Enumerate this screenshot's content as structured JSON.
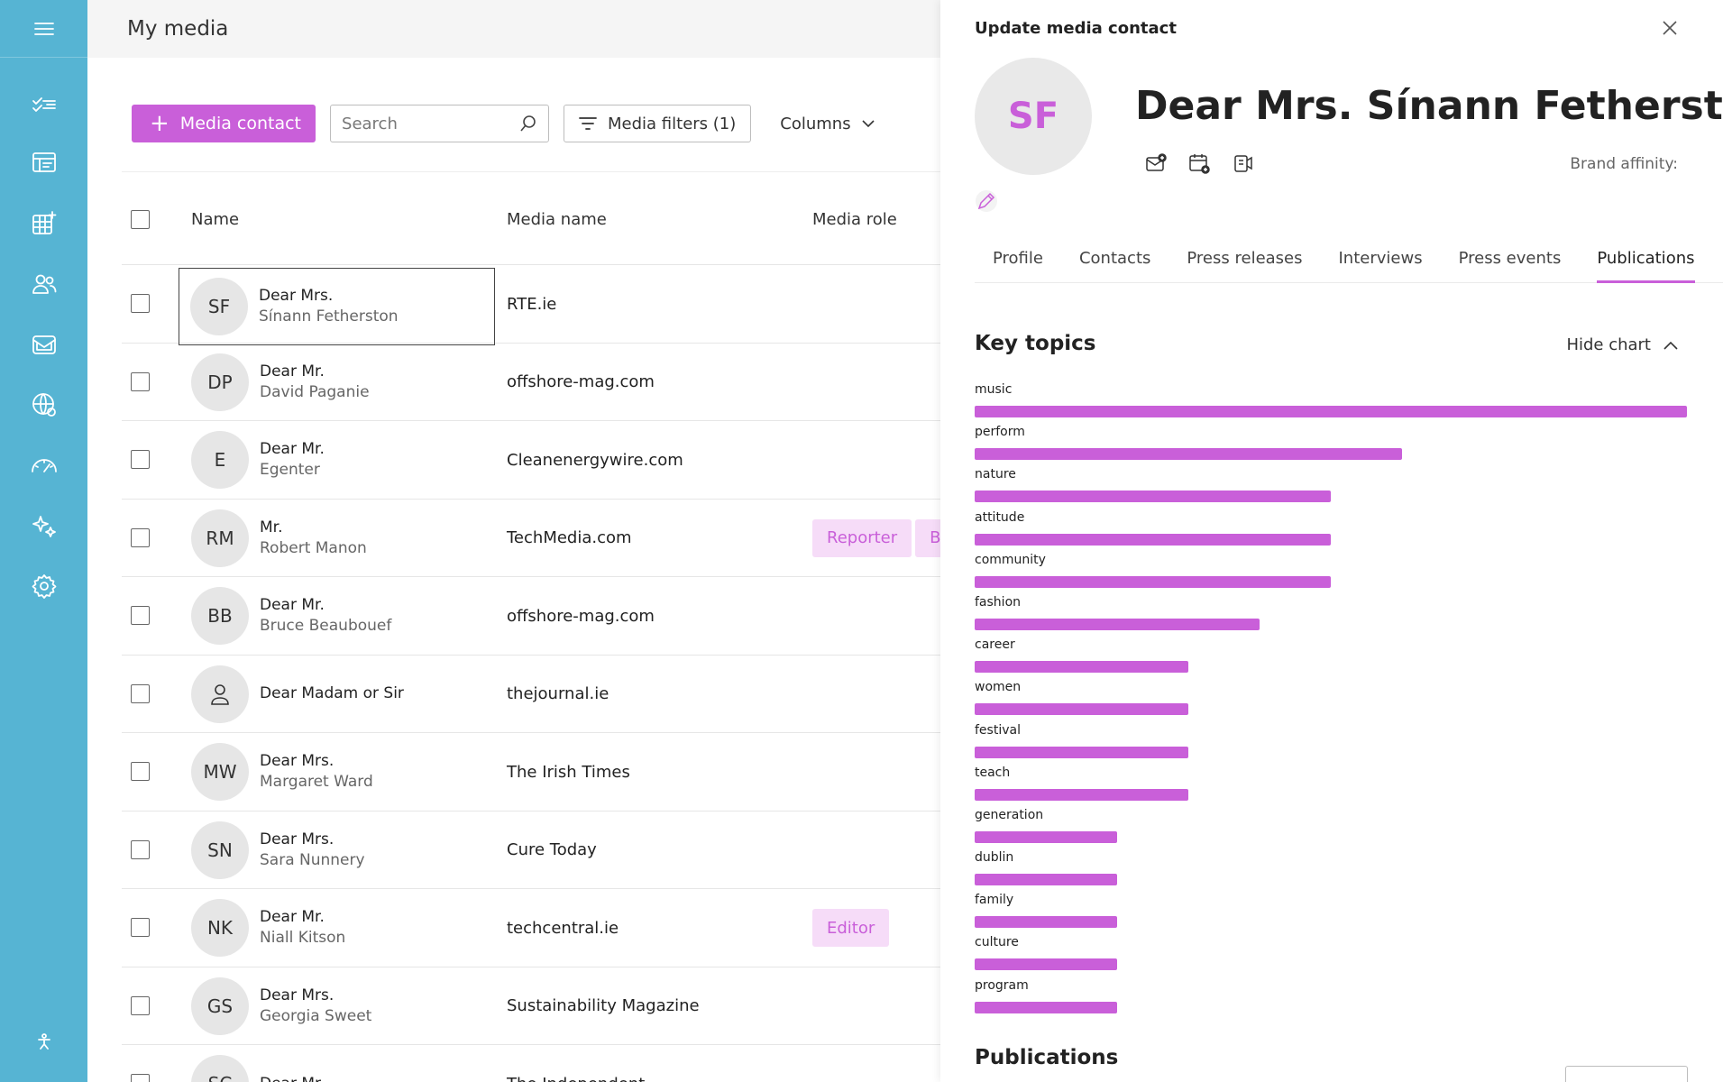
{
  "main": {
    "title": "My media",
    "toolbar": {
      "add_label": "Media contact",
      "search_placeholder": "Search",
      "filters_label": "Media filters (1)",
      "columns_label": "Columns"
    },
    "table": {
      "headers": {
        "name": "Name",
        "media_name": "Media name",
        "media_role": "Media role"
      },
      "rows": [
        {
          "initials": "SF",
          "salutation": "Dear Mrs.",
          "full_name": "Sínann Fetherston",
          "media": "RTE.ie",
          "roles": []
        },
        {
          "initials": "DP",
          "salutation": "Dear Mr.",
          "full_name": "David Paganie",
          "media": "offshore-mag.com",
          "roles": []
        },
        {
          "initials": "E",
          "salutation": "Dear Mr.",
          "full_name": "Egenter",
          "media": "Cleanenergywire.com",
          "roles": []
        },
        {
          "initials": "RM",
          "salutation": "Mr.",
          "full_name": "Robert Manon",
          "media": "TechMedia.com",
          "roles": [
            "Reporter",
            "Bl"
          ]
        },
        {
          "initials": "BB",
          "salutation": "Dear Mr.",
          "full_name": "Bruce Beaubouef",
          "media": "offshore-mag.com",
          "roles": []
        },
        {
          "initials": "",
          "salutation": "Dear Madam or Sir",
          "full_name": "",
          "media": "thejournal.ie",
          "roles": []
        },
        {
          "initials": "MW",
          "salutation": "Dear Mrs.",
          "full_name": "Margaret Ward",
          "media": "The Irish Times",
          "roles": []
        },
        {
          "initials": "SN",
          "salutation": "Dear Mrs.",
          "full_name": "Sara Nunnery",
          "media": "Cure Today",
          "roles": []
        },
        {
          "initials": "NK",
          "salutation": "Dear Mr.",
          "full_name": "Niall Kitson",
          "media": "techcentral.ie",
          "roles": [
            "Editor"
          ]
        },
        {
          "initials": "GS",
          "salutation": "Dear Mrs.",
          "full_name": "Georgia Sweet",
          "media": "Sustainability Magazine",
          "roles": []
        },
        {
          "initials": "SC",
          "salutation": "Dear Mr.",
          "full_name": "",
          "media": "The Independent",
          "roles": []
        }
      ]
    }
  },
  "panel": {
    "title": "Update media contact",
    "avatar_initials": "SF",
    "contact_name": "Dear Mrs. Sínann Fetherston",
    "brand_affinity_label": "Brand affinity:",
    "tabs": [
      "Profile",
      "Contacts",
      "Press releases",
      "Interviews",
      "Press events",
      "Publications"
    ],
    "active_tab": "Publications",
    "key_topics_title": "Key topics",
    "hide_chart_label": "Hide chart",
    "publications_title": "Publications"
  },
  "chart_data": {
    "type": "bar",
    "orientation": "horizontal",
    "categories": [
      "music",
      "perform",
      "nature",
      "attitude",
      "community",
      "fashion",
      "career",
      "women",
      "festival",
      "teach",
      "generation",
      "dublin",
      "family",
      "culture",
      "program"
    ],
    "values": [
      10,
      6,
      5,
      5,
      5,
      4,
      3,
      3,
      3,
      3,
      2,
      2,
      2,
      2,
      2
    ],
    "xlim": [
      0,
      10
    ],
    "color": "#c95fd9",
    "grid": false
  },
  "colors": {
    "accent": "#c95fd9",
    "rail": "#56b4d3",
    "chip_bg": "#f6dcf8"
  }
}
